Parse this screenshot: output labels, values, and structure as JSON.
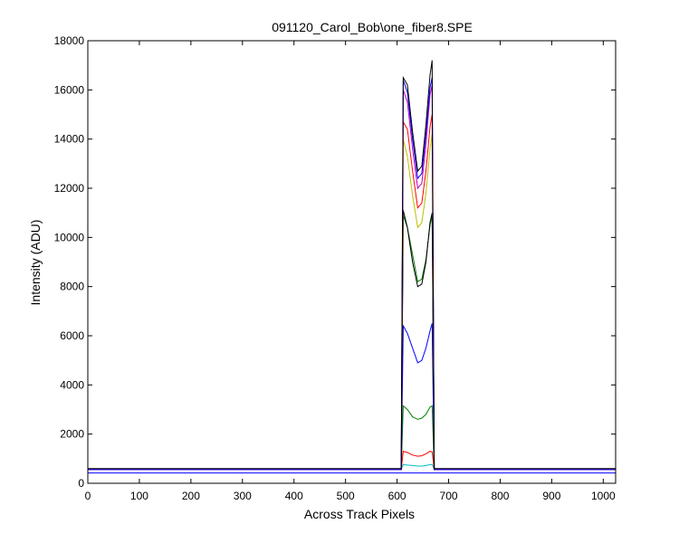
{
  "chart_data": {
    "type": "line",
    "title": "091120_Carol_Bob\\one_fiber8.SPE",
    "xlabel": "Across Track Pixels",
    "ylabel": "Intensity (ADU)",
    "xlim": [
      0,
      1024
    ],
    "ylim": [
      0,
      18000
    ],
    "xticks": [
      0,
      100,
      200,
      300,
      400,
      500,
      600,
      700,
      800,
      900,
      1000
    ],
    "yticks": [
      0,
      2000,
      4000,
      6000,
      8000,
      10000,
      12000,
      14000,
      16000,
      18000
    ],
    "grid": false,
    "legend": "none",
    "series": [
      {
        "color": "#0000ff",
        "x": [
          0,
          608,
          612,
          620,
          630,
          640,
          648,
          656,
          664,
          668,
          672,
          1024
        ],
        "y": [
          420,
          420,
          420,
          420,
          420,
          420,
          420,
          420,
          420,
          420,
          420,
          420
        ]
      },
      {
        "color": "#00bfbf",
        "x": [
          0,
          608,
          612,
          620,
          630,
          640,
          648,
          656,
          664,
          668,
          672,
          1024
        ],
        "y": [
          560,
          560,
          760,
          740,
          720,
          700,
          700,
          720,
          760,
          760,
          560,
          560
        ]
      },
      {
        "color": "#ff0000",
        "x": [
          0,
          608,
          612,
          620,
          630,
          640,
          648,
          656,
          664,
          668,
          672,
          1024
        ],
        "y": [
          560,
          560,
          1300,
          1250,
          1150,
          1100,
          1120,
          1200,
          1300,
          1280,
          560,
          560
        ]
      },
      {
        "color": "#007f00",
        "x": [
          0,
          608,
          612,
          620,
          630,
          640,
          648,
          656,
          664,
          668,
          672,
          1024
        ],
        "y": [
          560,
          560,
          3150,
          3000,
          2700,
          2600,
          2650,
          2800,
          3100,
          3150,
          560,
          560
        ]
      },
      {
        "color": "#0000ff",
        "x": [
          0,
          608,
          612,
          620,
          630,
          640,
          648,
          656,
          664,
          668,
          672,
          1024
        ],
        "y": [
          560,
          560,
          6400,
          6100,
          5500,
          4900,
          5000,
          5500,
          6200,
          6500,
          560,
          560
        ]
      },
      {
        "color": "#007f00",
        "x": [
          0,
          608,
          612,
          620,
          630,
          640,
          648,
          656,
          664,
          668,
          672,
          1024
        ],
        "y": [
          560,
          560,
          10900,
          10400,
          9300,
          8200,
          8300,
          9100,
          10500,
          10900,
          560,
          560
        ]
      },
      {
        "color": "#000000",
        "x": [
          0,
          608,
          612,
          620,
          630,
          640,
          648,
          656,
          664,
          668,
          672,
          1024
        ],
        "y": [
          560,
          560,
          11100,
          10400,
          9000,
          8000,
          8100,
          9000,
          10600,
          11000,
          560,
          560
        ]
      },
      {
        "color": "#bfbf00",
        "x": [
          0,
          608,
          612,
          620,
          630,
          640,
          648,
          656,
          664,
          668,
          672,
          1024
        ],
        "y": [
          560,
          560,
          14000,
          13300,
          11700,
          10400,
          10600,
          11800,
          13600,
          14200,
          560,
          560
        ]
      },
      {
        "color": "#ff0000",
        "x": [
          0,
          608,
          612,
          620,
          630,
          640,
          648,
          656,
          664,
          668,
          672,
          1024
        ],
        "y": [
          560,
          560,
          14700,
          14400,
          12700,
          11200,
          11400,
          12700,
          14500,
          15000,
          560,
          560
        ]
      },
      {
        "color": "#bf00bf",
        "x": [
          0,
          608,
          612,
          620,
          630,
          640,
          648,
          656,
          664,
          668,
          672,
          1024
        ],
        "y": [
          560,
          560,
          16000,
          15500,
          13600,
          12000,
          12200,
          13800,
          15800,
          16200,
          560,
          560
        ]
      },
      {
        "color": "#0000ff",
        "x": [
          0,
          608,
          612,
          620,
          630,
          640,
          648,
          656,
          664,
          668,
          672,
          1024
        ],
        "y": [
          560,
          560,
          16400,
          15900,
          14000,
          12400,
          12600,
          14200,
          16100,
          16500,
          560,
          560
        ]
      },
      {
        "color": "#000000",
        "x": [
          0,
          608,
          612,
          620,
          630,
          640,
          648,
          656,
          664,
          668,
          672,
          1024
        ],
        "y": [
          600,
          600,
          16500,
          16200,
          14300,
          12700,
          12900,
          14600,
          16600,
          17200,
          600,
          600
        ]
      }
    ]
  }
}
